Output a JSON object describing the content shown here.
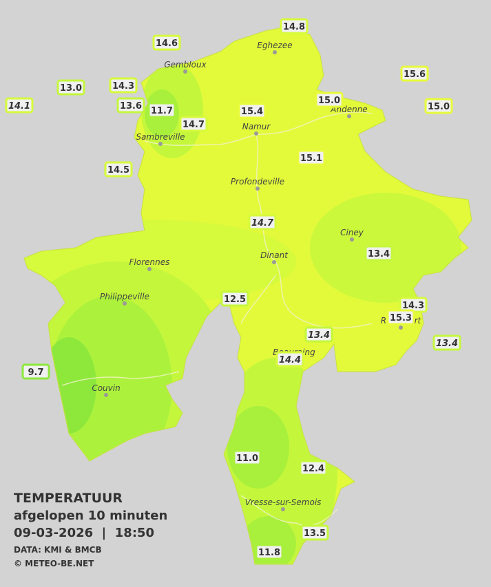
{
  "title": "TEMPERATUUR",
  "subtitle": "afgelopen 10 minuten",
  "datetime": "09-03-2026  |  18:50",
  "source": "DATA: KMI & BMCB",
  "copyright": "© METEO-BE.NET",
  "cities": [
    "Eghezee",
    "Gembloux",
    "Andenne",
    "Namur",
    "Sambreville",
    "Profondeville",
    "Ciney",
    "Florennes",
    "Dinant",
    "Philippeville",
    "Rochefort",
    "Beauraing",
    "Couvin",
    "Vresse-sur-Semois"
  ],
  "stations": [
    {
      "value": "14.8"
    },
    {
      "value": "14.6"
    },
    {
      "value": "15.6"
    },
    {
      "value": "13.0"
    },
    {
      "value": "14.3"
    },
    {
      "value": "14.1",
      "italic": true
    },
    {
      "value": "13.6"
    },
    {
      "value": "11.7"
    },
    {
      "value": "15.0"
    },
    {
      "value": "15.0"
    },
    {
      "value": "15.4"
    },
    {
      "value": "14.7"
    },
    {
      "value": "15.1"
    },
    {
      "value": "14.5"
    },
    {
      "value": "14.7",
      "italic": true
    },
    {
      "value": "13.4"
    },
    {
      "value": "12.5"
    },
    {
      "value": "14.3"
    },
    {
      "value": "15.3"
    },
    {
      "value": "13.4",
      "italic": true
    },
    {
      "value": "13.4",
      "italic": true
    },
    {
      "value": "14.4",
      "italic": true
    },
    {
      "value": "9.7"
    },
    {
      "value": "11.0"
    },
    {
      "value": "12.4"
    },
    {
      "value": "13.5"
    },
    {
      "value": "11.8"
    }
  ]
}
